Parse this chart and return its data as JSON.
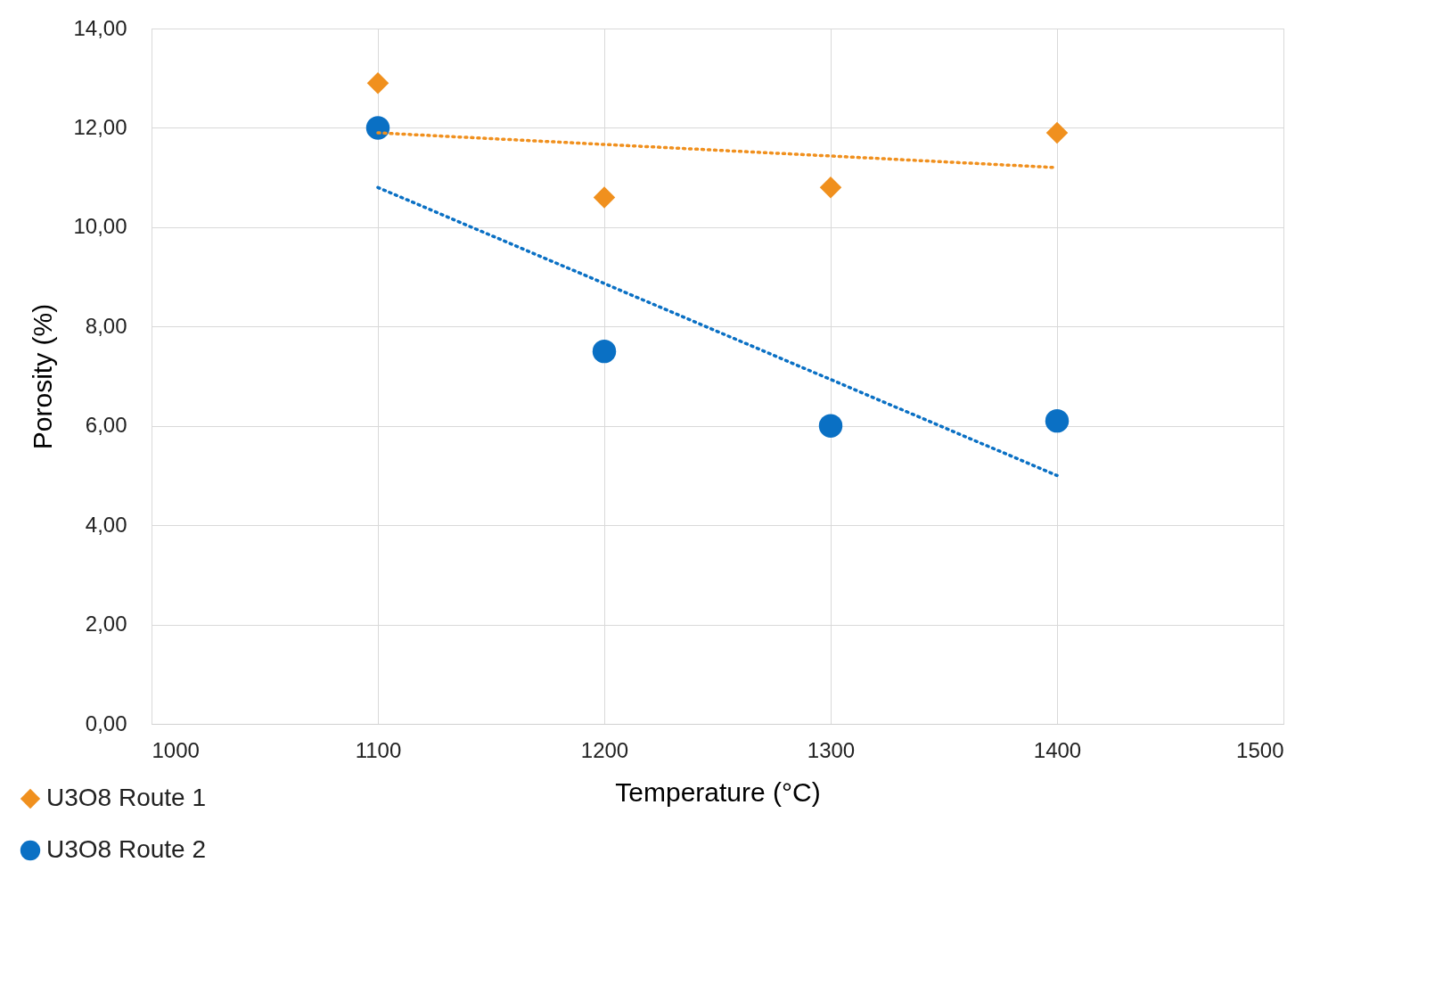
{
  "chart_data": {
    "type": "scatter",
    "xlabel": "Temperature (°C)",
    "ylabel": "Porosity (%)",
    "xlim": [
      1000,
      1500
    ],
    "xticks": [
      1000,
      1100,
      1200,
      1300,
      1400,
      1500
    ],
    "ylim": [
      0,
      14
    ],
    "yticks": [
      {
        "value": 0,
        "label": "0,00"
      },
      {
        "value": 2,
        "label": "2,00"
      },
      {
        "value": 4,
        "label": "4,00"
      },
      {
        "value": 6,
        "label": "6,00"
      },
      {
        "value": 8,
        "label": "8,00"
      },
      {
        "value": 10,
        "label": "10,00"
      },
      {
        "value": 12,
        "label": "12,00"
      },
      {
        "value": 14,
        "label": "14,00"
      }
    ],
    "grid": true,
    "legend": "bottom left",
    "series": [
      {
        "name": "U3O8 Route 1",
        "marker": "diamond",
        "color": "#f0901e",
        "x": [
          1100,
          1200,
          1300,
          1400
        ],
        "values": [
          12.9,
          10.6,
          10.8,
          11.9
        ]
      },
      {
        "name": "U3O8 Route 2",
        "marker": "circle",
        "color": "#0a70c4",
        "x": [
          1100,
          1200,
          1300,
          1400
        ],
        "values": [
          12.0,
          7.5,
          6.0,
          6.1
        ]
      },
      {
        "type": "line",
        "line_style": "dotted",
        "marker": "none",
        "color": "#f0901e",
        "x": [
          1100,
          1400
        ],
        "values": [
          11.9,
          11.2
        ]
      },
      {
        "type": "line",
        "line_style": "dotted",
        "marker": "none",
        "color": "#0a70c4",
        "x": [
          1100,
          1400
        ],
        "values": [
          10.8,
          5.0
        ]
      }
    ]
  }
}
